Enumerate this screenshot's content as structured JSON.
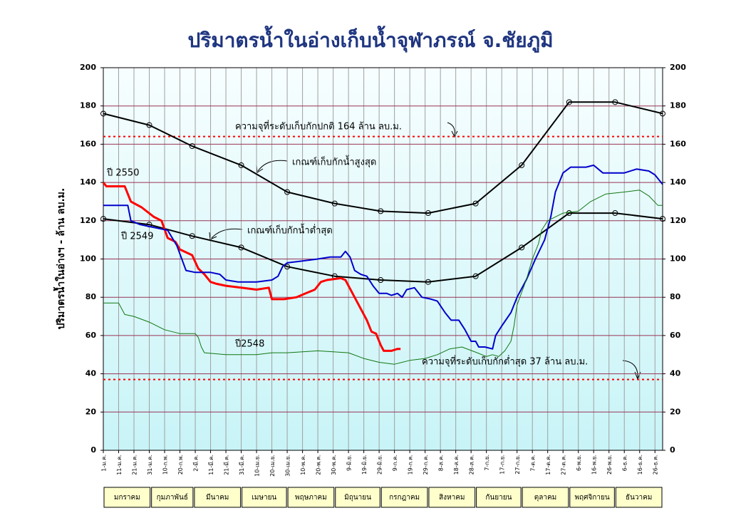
{
  "chart_data": {
    "type": "line",
    "title": "ปริมาตรน้ำในอ่างเก็บน้ำจุฬาภรณ์ จ.ชัยภูมิ",
    "y_label": "ปริมาตรน้ำในอ่างฯ - ล้าน ลบ.ม.",
    "xlim": [
      0,
      365
    ],
    "xticks": [
      {
        "value": 0,
        "label": "1-ม.ค."
      },
      {
        "value": 10,
        "label": "11-ม.ค."
      },
      {
        "value": 20,
        "label": "21-ม.ค."
      },
      {
        "value": 30,
        "label": "31-ม.ค."
      },
      {
        "value": 40,
        "label": "10-ก.พ."
      },
      {
        "value": 50,
        "label": "20-ก.พ."
      },
      {
        "value": 60,
        "label": "2-มี.ค."
      },
      {
        "value": 70,
        "label": "11-มี.ค."
      },
      {
        "value": 80,
        "label": "21-มี.ค."
      },
      {
        "value": 90,
        "label": "31-มี.ค."
      },
      {
        "value": 100,
        "label": "10-เม.ย."
      },
      {
        "value": 110,
        "label": "20-เม.ย."
      },
      {
        "value": 120,
        "label": "30-เม.ย."
      },
      {
        "value": 130,
        "label": "10-พ.ค."
      },
      {
        "value": 140,
        "label": "20-พ.ค."
      },
      {
        "value": 150,
        "label": "30-พ.ค."
      },
      {
        "value": 160,
        "label": "9-มิ.ย."
      },
      {
        "value": 170,
        "label": "19-มิ.ย."
      },
      {
        "value": 180,
        "label": "29-มิ.ย."
      },
      {
        "value": 190,
        "label": "9-ก.ค."
      },
      {
        "value": 200,
        "label": "19-ก.ค."
      },
      {
        "value": 210,
        "label": "29-ก.ค."
      },
      {
        "value": 220,
        "label": "8-ส.ค."
      },
      {
        "value": 230,
        "label": "18-ส.ค."
      },
      {
        "value": 240,
        "label": "28-ส.ค."
      },
      {
        "value": 250,
        "label": "7-ก.ย."
      },
      {
        "value": 260,
        "label": "17-ก.ย."
      },
      {
        "value": 270,
        "label": "27-ก.ย."
      },
      {
        "value": 280,
        "label": "7-ต.ค."
      },
      {
        "value": 290,
        "label": "17-ต.ค."
      },
      {
        "value": 300,
        "label": "27-ต.ค."
      },
      {
        "value": 310,
        "label": "6-พ.ย."
      },
      {
        "value": 320,
        "label": "16-พ.ย."
      },
      {
        "value": 330,
        "label": "26-พ.ย."
      },
      {
        "value": 340,
        "label": "6-ธ.ค."
      },
      {
        "value": 350,
        "label": "16-ธ.ค."
      },
      {
        "value": 360,
        "label": "26-ธ.ค."
      }
    ],
    "ylim": [
      0,
      200
    ],
    "yticks": [
      0,
      20,
      40,
      60,
      80,
      100,
      120,
      140,
      160,
      180,
      200
    ],
    "y2lim": [
      0,
      200
    ],
    "y2ticks": [
      0,
      20,
      40,
      60,
      80,
      100,
      120,
      140,
      160,
      180,
      200
    ],
    "grid": true,
    "months": [
      "มกราคม",
      "กุมภาพันธ์",
      "มีนาคม",
      "เมษายน",
      "พฤษภาคม",
      "มิถุนายน",
      "กรกฎาคม",
      "สิงหาคม",
      "กันยายน",
      "ตุลาคม",
      "พฤศจิกายน",
      "ธันวาคม"
    ],
    "ref_lines": [
      {
        "value": 164,
        "label": "ความจุที่ระดับเก็บกักปกติ 164 ล้าน ลบ.ม.",
        "color": "#ff0000"
      },
      {
        "value": 37,
        "label": "ความจุที่ระดับเก็บกักต่ำสุด 37 ล้าน ลบ.ม.",
        "color": "#ff0000"
      }
    ],
    "series": [
      {
        "name": "เกณฑ์เก็บกักน้ำสูงสุด",
        "color": "#000000",
        "markers": true,
        "x": [
          0,
          30,
          58,
          90,
          120,
          151,
          181,
          212,
          243,
          273,
          304,
          334,
          365
        ],
        "values": [
          176,
          170,
          159,
          149,
          135,
          129,
          125,
          124,
          129,
          149,
          182,
          182,
          176
        ]
      },
      {
        "name": "เกณฑ์เก็บกักน้ำต่ำสุด",
        "color": "#000000",
        "markers": true,
        "x": [
          0,
          30,
          58,
          90,
          120,
          151,
          181,
          212,
          243,
          273,
          304,
          334,
          365
        ],
        "values": [
          121,
          118,
          112,
          106,
          96,
          91,
          89,
          88,
          91,
          106,
          124,
          124,
          121
        ]
      },
      {
        "name": "ปี 2550",
        "color": "#ff0000",
        "width": 3,
        "x": [
          0,
          2,
          14,
          18,
          25,
          33,
          38,
          42,
          47,
          50,
          58,
          62,
          66,
          70,
          74,
          80,
          90,
          100,
          108,
          110,
          118,
          126,
          132,
          138,
          142,
          146,
          155,
          158,
          160,
          164,
          168,
          172,
          175,
          178,
          181,
          183,
          188,
          192,
          194
        ],
        "values": [
          140,
          138,
          138,
          130,
          127,
          122,
          120,
          111,
          109,
          105,
          102,
          95,
          92,
          88,
          87,
          86,
          85,
          84,
          85,
          79,
          79,
          80,
          82,
          84,
          88,
          89,
          90,
          89,
          86,
          80,
          74,
          68,
          62,
          61,
          55,
          52,
          52,
          53,
          53
        ]
      },
      {
        "name": "ปี 2549",
        "color": "#0000cc",
        "width": 2,
        "x": [
          0,
          16,
          18,
          24,
          30,
          42,
          48,
          54,
          60,
          70,
          76,
          80,
          88,
          100,
          110,
          114,
          117,
          120,
          130,
          140,
          148,
          155,
          158,
          161,
          164,
          168,
          172,
          176,
          180,
          185,
          188,
          192,
          195,
          198,
          203,
          208,
          214,
          218,
          223,
          227,
          232,
          236,
          240,
          243,
          245,
          249,
          254,
          256,
          260,
          266,
          270,
          276,
          282,
          288,
          292,
          295,
          300,
          305,
          315,
          320,
          326,
          340,
          348,
          356,
          360,
          365
        ],
        "values": [
          128,
          128,
          120,
          118,
          117,
          115,
          107,
          94,
          93,
          93,
          92,
          89,
          88,
          88,
          89,
          91,
          96,
          98,
          99,
          100,
          101,
          101,
          104,
          101,
          94,
          92,
          91,
          86,
          82,
          82,
          81,
          82,
          80,
          84,
          85,
          80,
          79,
          78,
          72,
          68,
          68,
          63,
          57,
          57,
          54,
          54,
          53,
          60,
          65,
          72,
          80,
          89,
          100,
          110,
          122,
          135,
          145,
          148,
          148,
          149,
          145,
          145,
          147,
          146,
          144,
          139
        ]
      },
      {
        "name": "ปี2548",
        "color": "#117711",
        "width": 1,
        "x": [
          0,
          10,
          14,
          20,
          30,
          40,
          50,
          60,
          62,
          64,
          66,
          80,
          100,
          110,
          120,
          140,
          160,
          170,
          180,
          190,
          200,
          210,
          218,
          226,
          234,
          244,
          250,
          254,
          258,
          262,
          266,
          268,
          270,
          276,
          280,
          284,
          286,
          290,
          300,
          310,
          318,
          328,
          340,
          350,
          356,
          362,
          365
        ],
        "values": [
          77,
          77,
          71,
          70,
          67,
          63,
          61,
          61,
          59,
          54,
          51,
          50,
          50,
          51,
          51,
          52,
          51,
          48,
          46,
          45,
          47,
          48,
          50,
          53,
          54,
          51,
          49,
          50,
          49,
          52,
          57,
          65,
          76,
          89,
          100,
          108,
          115,
          120,
          124,
          125,
          130,
          134,
          135,
          136,
          133,
          128,
          128
        ]
      }
    ]
  }
}
